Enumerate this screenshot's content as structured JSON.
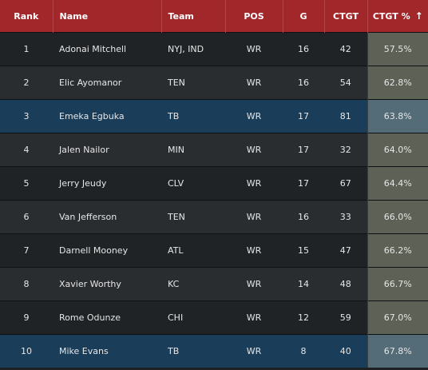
{
  "columns": {
    "rank": "Rank",
    "name": "Name",
    "team": "Team",
    "pos": "POS",
    "g": "G",
    "ctgt": "CTGT",
    "ctgt_pct": "CTGT %",
    "sort_icon": "↑"
  },
  "rows": [
    {
      "rank": "1",
      "name": "Adonai Mitchell",
      "team": "NYJ, IND",
      "pos": "WR",
      "g": "16",
      "ctgt": "42",
      "pct": "57.5%"
    },
    {
      "rank": "2",
      "name": "Elic Ayomanor",
      "team": "TEN",
      "pos": "WR",
      "g": "16",
      "ctgt": "54",
      "pct": "62.8%"
    },
    {
      "rank": "3",
      "name": "Emeka Egbuka",
      "team": "TB",
      "pos": "WR",
      "g": "17",
      "ctgt": "81",
      "pct": "63.8%"
    },
    {
      "rank": "4",
      "name": "Jalen Nailor",
      "team": "MIN",
      "pos": "WR",
      "g": "17",
      "ctgt": "32",
      "pct": "64.0%"
    },
    {
      "rank": "5",
      "name": "Jerry Jeudy",
      "team": "CLV",
      "pos": "WR",
      "g": "17",
      "ctgt": "67",
      "pct": "64.4%"
    },
    {
      "rank": "6",
      "name": "Van Jefferson",
      "team": "TEN",
      "pos": "WR",
      "g": "16",
      "ctgt": "33",
      "pct": "66.0%"
    },
    {
      "rank": "7",
      "name": "Darnell Mooney",
      "team": "ATL",
      "pos": "WR",
      "g": "15",
      "ctgt": "47",
      "pct": "66.2%"
    },
    {
      "rank": "8",
      "name": "Xavier Worthy",
      "team": "KC",
      "pos": "WR",
      "g": "14",
      "ctgt": "48",
      "pct": "66.7%"
    },
    {
      "rank": "9",
      "name": "Rome Odunze",
      "team": "CHI",
      "pos": "WR",
      "g": "12",
      "ctgt": "59",
      "pct": "67.0%"
    },
    {
      "rank": "10",
      "name": "Mike Evans",
      "team": "TB",
      "pos": "WR",
      "g": "8",
      "ctgt": "40",
      "pct": "67.8%"
    }
  ],
  "colors": {
    "header_bg": "#a1272b",
    "highlight_row": "#1a3d5a",
    "pct_cell": "#5e6256",
    "pct_cell_highlight": "#546b78"
  }
}
